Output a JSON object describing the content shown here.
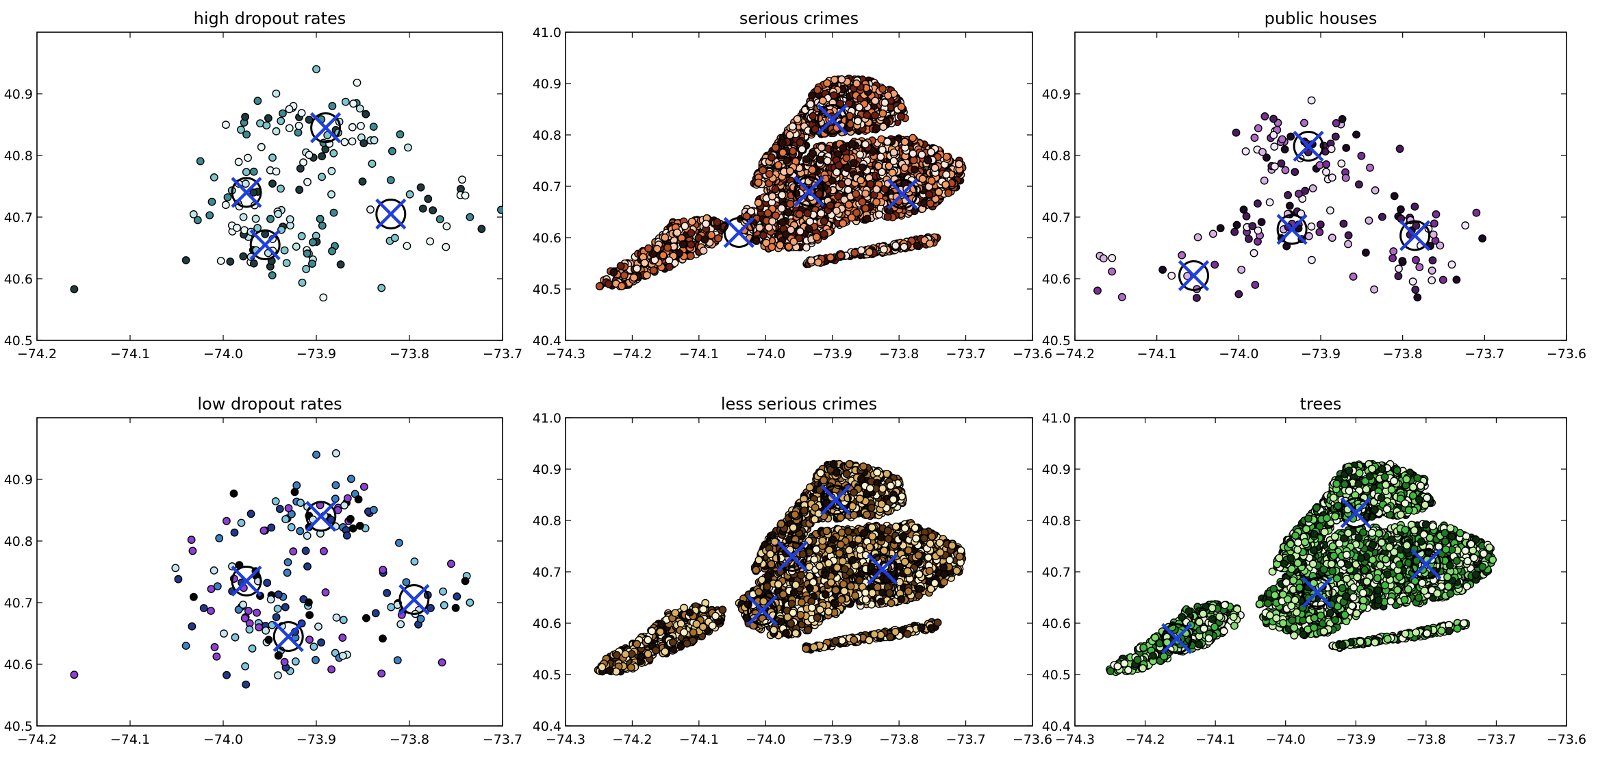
{
  "chart_data": [
    {
      "type": "scatter",
      "title": "high dropout rates",
      "xlim": [
        -74.2,
        -73.7
      ],
      "ylim": [
        40.5,
        41.0
      ],
      "xticks": [
        "−74.2",
        "−74.1",
        "−74.0",
        "−73.9",
        "−73.8",
        "−73.7"
      ],
      "yticks": [
        "40.5",
        "40.6",
        "40.7",
        "40.8",
        "40.9"
      ],
      "grid": false,
      "point_colormap": [
        "#1f3a3d",
        "#3d8a93",
        "#7fc6cc",
        "#bfe6e8",
        "#e9f7f7"
      ],
      "point_clusters": [
        {
          "cx": -73.895,
          "cy": 40.845,
          "sx": 0.045,
          "sy": 0.035,
          "n": 55
        },
        {
          "cx": -73.975,
          "cy": 40.735,
          "sx": 0.035,
          "sy": 0.05,
          "n": 45
        },
        {
          "cx": -73.95,
          "cy": 40.655,
          "sx": 0.04,
          "sy": 0.035,
          "n": 40
        },
        {
          "cx": -73.8,
          "cy": 40.71,
          "sx": 0.05,
          "sy": 0.035,
          "n": 22
        }
      ],
      "extra_points": [
        [
          -74.16,
          40.583
        ],
        [
          -73.9,
          40.94
        ],
        [
          -74.04,
          40.63
        ],
        [
          -73.83,
          40.585
        ],
        [
          -73.74,
          40.735
        ],
        [
          -73.735,
          40.7
        ],
        [
          -73.76,
          40.685
        ],
        [
          -73.82,
          40.76
        ]
      ],
      "centroids": [
        [
          -73.89,
          40.845
        ],
        [
          -73.975,
          40.74
        ],
        [
          -73.955,
          40.655
        ],
        [
          -73.82,
          40.705
        ]
      ]
    },
    {
      "type": "scatter",
      "title": "serious crimes",
      "xlim": [
        -74.3,
        -73.6
      ],
      "ylim": [
        40.4,
        41.0
      ],
      "xticks": [
        "−74.3",
        "−74.2",
        "−74.1",
        "−74.0",
        "−73.9",
        "−73.8",
        "−73.7",
        "−73.6"
      ],
      "yticks": [
        "40.4",
        "40.5",
        "40.6",
        "40.7",
        "40.8",
        "40.9",
        "41.0"
      ],
      "grid": false,
      "point_colormap": [
        "#2b0d07",
        "#6e1e0f",
        "#b34a23",
        "#e87a3f",
        "#f2a06b",
        "#f7c9b0",
        "#fce8dc"
      ],
      "centroids": [
        [
          -73.9,
          40.83
        ],
        [
          -73.935,
          40.69
        ],
        [
          -73.795,
          40.685
        ],
        [
          -74.04,
          40.61
        ]
      ]
    },
    {
      "type": "scatter",
      "title": "public houses",
      "xlim": [
        -74.2,
        -73.6
      ],
      "ylim": [
        40.5,
        41.0
      ],
      "xticks": [
        "−74.2",
        "−74.1",
        "−74.0",
        "−73.9",
        "−73.8",
        "−73.7",
        "−73.6"
      ],
      "yticks": [
        "40.5",
        "40.6",
        "40.7",
        "40.8",
        "40.9"
      ],
      "grid": false,
      "point_colormap": [
        "#1a0a22",
        "#4a1a5e",
        "#7a2e96",
        "#b06ac8",
        "#d9b3e6",
        "#f3e8f7"
      ],
      "point_clusters": [
        {
          "cx": -73.915,
          "cy": 40.815,
          "sx": 0.05,
          "sy": 0.04,
          "n": 60
        },
        {
          "cx": -73.94,
          "cy": 40.685,
          "sx": 0.045,
          "sy": 0.025,
          "n": 45
        },
        {
          "cx": -73.785,
          "cy": 40.68,
          "sx": 0.035,
          "sy": 0.03,
          "n": 30
        },
        {
          "cx": -74.06,
          "cy": 40.61,
          "sx": 0.06,
          "sy": 0.03,
          "n": 14
        },
        {
          "cx": -73.8,
          "cy": 40.595,
          "sx": 0.035,
          "sy": 0.012,
          "n": 10
        }
      ],
      "extra_points": [
        [
          -74.165,
          40.633
        ],
        [
          -73.71,
          40.707
        ],
        [
          -73.74,
          40.623
        ],
        [
          -74.0,
          40.575
        ],
        [
          -73.98,
          40.59
        ]
      ],
      "centroids": [
        [
          -73.915,
          40.815
        ],
        [
          -73.935,
          40.68
        ],
        [
          -73.785,
          40.67
        ],
        [
          -74.055,
          40.605
        ]
      ]
    },
    {
      "type": "scatter",
      "title": "low dropout rates",
      "xlim": [
        -74.2,
        -73.7
      ],
      "ylim": [
        40.5,
        41.0
      ],
      "xticks": [
        "−74.2",
        "−74.1",
        "−74.0",
        "−73.9",
        "−73.8",
        "−73.7"
      ],
      "yticks": [
        "40.5",
        "40.6",
        "40.7",
        "40.8",
        "40.9"
      ],
      "grid": false,
      "point_colormap": [
        "#050505",
        "#1f3a8a",
        "#3b82c4",
        "#7fc6e0",
        "#8e3fd6",
        "#c9e6f0"
      ],
      "point_clusters": [
        {
          "cx": -73.895,
          "cy": 40.84,
          "sx": 0.04,
          "sy": 0.035,
          "n": 55
        },
        {
          "cx": -73.975,
          "cy": 40.73,
          "sx": 0.035,
          "sy": 0.05,
          "n": 50
        },
        {
          "cx": -73.93,
          "cy": 40.65,
          "sx": 0.045,
          "sy": 0.04,
          "n": 45
        },
        {
          "cx": -73.79,
          "cy": 40.7,
          "sx": 0.04,
          "sy": 0.04,
          "n": 25
        }
      ],
      "extra_points": [
        [
          -74.16,
          40.583
        ],
        [
          -73.9,
          40.94
        ],
        [
          -74.04,
          40.63
        ],
        [
          -73.83,
          40.585
        ],
        [
          -73.74,
          40.735
        ],
        [
          -73.735,
          40.7
        ],
        [
          -73.765,
          40.603
        ]
      ],
      "centroids": [
        [
          -73.895,
          40.84
        ],
        [
          -73.975,
          40.735
        ],
        [
          -73.93,
          40.645
        ],
        [
          -73.795,
          40.705
        ]
      ]
    },
    {
      "type": "scatter",
      "title": "less serious crimes",
      "xlim": [
        -74.3,
        -73.6
      ],
      "ylim": [
        40.4,
        41.0
      ],
      "xticks": [
        "−74.3",
        "−74.2",
        "−74.1",
        "−74.0",
        "−73.9",
        "−73.8",
        "−73.7",
        "−73.6"
      ],
      "yticks": [
        "40.4",
        "40.5",
        "40.6",
        "40.7",
        "40.8",
        "40.9",
        "41.0"
      ],
      "grid": false,
      "point_colormap": [
        "#1a0d05",
        "#5a3512",
        "#a8702e",
        "#d9ad5f",
        "#efd79a",
        "#fbf1cf"
      ],
      "centroids": [
        [
          -73.895,
          40.84
        ],
        [
          -73.96,
          40.73
        ],
        [
          -73.825,
          40.705
        ],
        [
          -74.005,
          40.625
        ]
      ]
    },
    {
      "type": "scatter",
      "title": "trees",
      "xlim": [
        -74.3,
        -73.6
      ],
      "ylim": [
        40.4,
        41.0
      ],
      "xticks": [
        "−74.3",
        "−74.2",
        "−74.1",
        "−74.0",
        "−73.9",
        "−73.8",
        "−73.7",
        "−73.6"
      ],
      "yticks": [
        "40.4",
        "40.5",
        "40.6",
        "40.7",
        "40.8",
        "40.9",
        "41.0"
      ],
      "grid": false,
      "point_colormap": [
        "#0b2e0b",
        "#1f7a1f",
        "#3fb83f",
        "#7ddc6a",
        "#c6f0a8",
        "#eef9e0"
      ],
      "centroids": [
        [
          -73.9,
          40.815
        ],
        [
          -73.955,
          40.66
        ],
        [
          -73.8,
          40.715
        ],
        [
          -74.155,
          40.57
        ]
      ]
    }
  ],
  "colors": {
    "centroid_cross": "#1f3fe0",
    "centroid_circle": "#000000",
    "point_edge": "#000000"
  }
}
